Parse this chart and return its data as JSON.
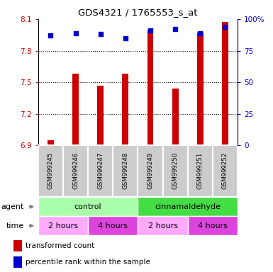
{
  "title": "GDS4321 / 1765553_s_at",
  "samples": [
    "GSM999245",
    "GSM999246",
    "GSM999247",
    "GSM999248",
    "GSM999249",
    "GSM999250",
    "GSM999251",
    "GSM999252"
  ],
  "bar_values": [
    6.95,
    7.58,
    7.47,
    7.58,
    8.0,
    7.44,
    7.97,
    8.07
  ],
  "dot_values": [
    87,
    89,
    88,
    85,
    91,
    92,
    89,
    94
  ],
  "bar_color": "#cc0000",
  "dot_color": "#0000cc",
  "ylim_left": [
    6.9,
    8.1
  ],
  "ylim_right": [
    0,
    100
  ],
  "yticks_left": [
    6.9,
    7.2,
    7.5,
    7.8,
    8.1
  ],
  "yticks_right": [
    0,
    25,
    50,
    75,
    100
  ],
  "ytick_labels_left": [
    "6.9",
    "7.2",
    "7.5",
    "7.8",
    "8.1"
  ],
  "ytick_labels_right": [
    "0",
    "25",
    "50",
    "75",
    "100%"
  ],
  "dotted_lines": [
    7.8,
    7.5,
    7.2
  ],
  "agent_labels": [
    {
      "text": "control",
      "start": 0,
      "end": 3,
      "color": "#aaffaa"
    },
    {
      "text": "cinnamaldehyde",
      "start": 4,
      "end": 7,
      "color": "#44dd44"
    }
  ],
  "time_labels": [
    {
      "text": "2 hours",
      "start": 0,
      "end": 1,
      "color": "#ffaaff"
    },
    {
      "text": "4 hours",
      "start": 2,
      "end": 3,
      "color": "#dd44dd"
    },
    {
      "text": "2 hours",
      "start": 4,
      "end": 5,
      "color": "#ffaaff"
    },
    {
      "text": "4 hours",
      "start": 6,
      "end": 7,
      "color": "#dd44dd"
    }
  ],
  "legend_bar_label": "transformed count",
  "legend_dot_label": "percentile rank within the sample",
  "row_label_agent": "agent",
  "row_label_time": "time",
  "bg_sample_color": "#cccccc",
  "bar_width": 0.25
}
